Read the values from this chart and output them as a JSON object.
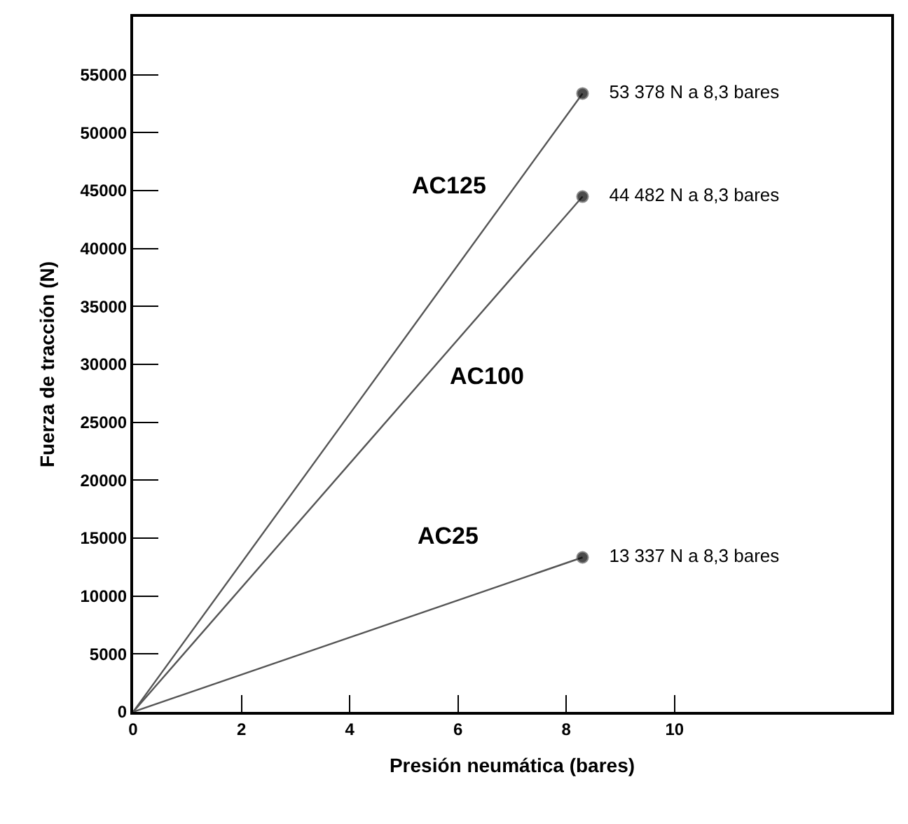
{
  "chart_data": {
    "type": "line",
    "xlabel": "Presión neumática (bares)",
    "ylabel": "Fuerza de tracción (N)",
    "xlim": [
      0,
      14
    ],
    "xticks": [
      0,
      2,
      4,
      6,
      8,
      10
    ],
    "ylim": [
      0,
      60000
    ],
    "yticks": [
      0,
      5000,
      10000,
      15000,
      20000,
      25000,
      30000,
      35000,
      40000,
      45000,
      50000,
      55000
    ],
    "legend": false,
    "x": [
      0,
      8.3
    ],
    "marker": "circle",
    "line_style": "solid",
    "series": [
      {
        "name": "AC125",
        "color": "#555555",
        "values": [
          0,
          53378
        ],
        "value_labels": [
          null,
          "53 378 N a 8,3 bares"
        ]
      },
      {
        "name": "AC100",
        "color": "#555555",
        "values": [
          0,
          44482
        ],
        "value_labels": [
          null,
          "44 482 N a 8,3 bares"
        ]
      },
      {
        "name": "AC25",
        "color": "#555555",
        "values": [
          0,
          13337
        ],
        "value_labels": [
          null,
          "13 337 N a 8,3 bares"
        ]
      }
    ]
  }
}
